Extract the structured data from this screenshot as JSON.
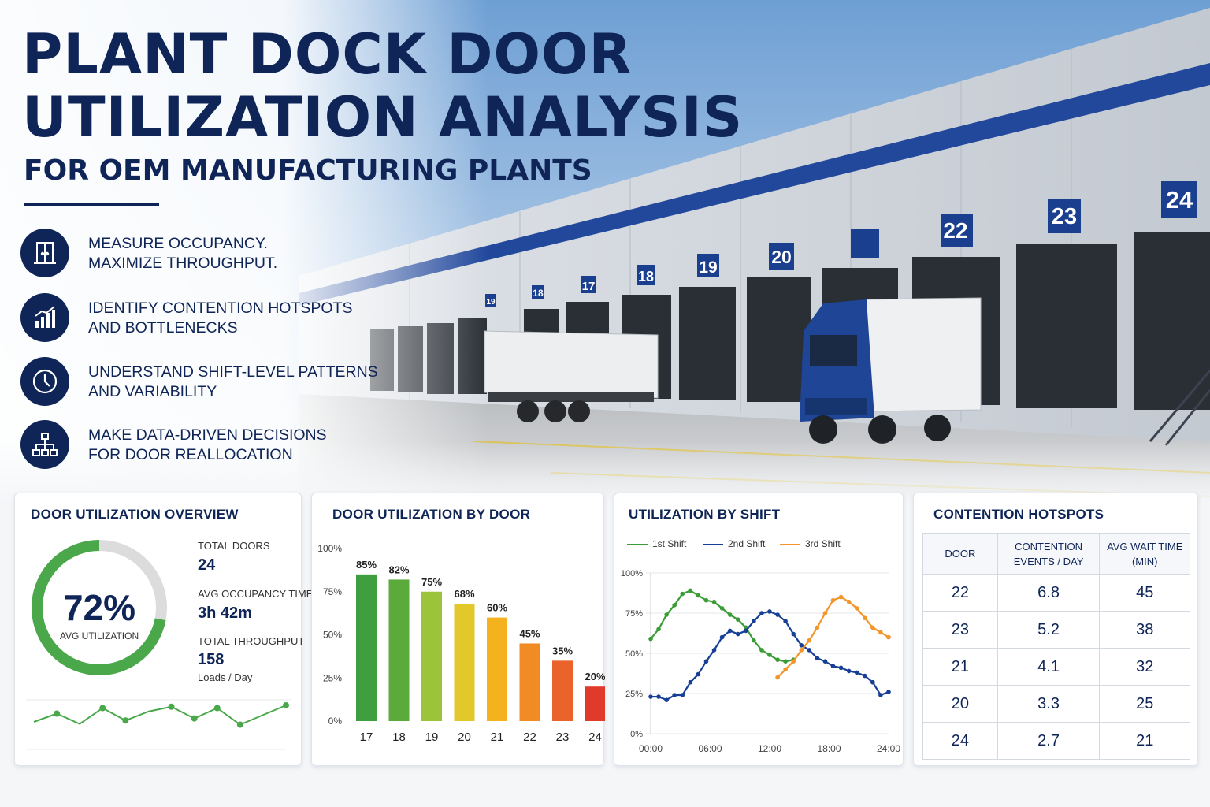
{
  "title": {
    "line1": "PLANT DOCK DOOR",
    "line2": "UTILIZATION ANALYSIS",
    "subtitle": "FOR OEM MANUFACTURING PLANTS"
  },
  "features": [
    {
      "icon": "door-icon",
      "line1": "MEASURE OCCUPANCY.",
      "line2": "MAXIMIZE THROUGHPUT."
    },
    {
      "icon": "bar-trend-icon",
      "line1": "IDENTIFY CONTENTION HOTSPOTS",
      "line2": "AND BOTTLENECKS"
    },
    {
      "icon": "clock-icon",
      "line1": "UNDERSTAND SHIFT-LEVEL PATTERNS",
      "line2": "AND VARIABILITY"
    },
    {
      "icon": "hierarchy-icon",
      "line1": "MAKE DATA-DRIVEN DECISIONS",
      "line2": "FOR DOOR REALLOCATION"
    }
  ],
  "hero": {
    "door_numbers": [
      "17",
      "18",
      "19",
      "20",
      "22",
      "23",
      "24"
    ],
    "small_door_numbers": [
      "19",
      "18"
    ]
  },
  "overview": {
    "title": "DOOR UTILIZATION OVERVIEW",
    "avg_utilization": "72%",
    "avg_utilization_label": "AVG UTILIZATION",
    "total_doors_label": "TOTAL DOORS",
    "total_doors": "24",
    "avg_occupancy_label": "AVG OCCUPANCY TIME",
    "avg_occupancy": "3h 42m",
    "throughput_label": "TOTAL THROUGHPUT",
    "throughput": "158",
    "throughput_unit": "Loads / Day",
    "colors": {
      "accent": "#4aa84a",
      "track": "#dcdcdc"
    }
  },
  "chart_data": [
    {
      "type": "pie",
      "values": [
        72,
        28
      ],
      "center_label": "72%"
    },
    {
      "type": "line",
      "x": [
        0,
        1,
        2,
        3,
        4,
        5,
        6,
        7,
        8,
        9,
        10,
        11
      ],
      "values": [
        40,
        52,
        37,
        60,
        42,
        55,
        62,
        45,
        60,
        36,
        50,
        64
      ]
    },
    {
      "type": "bar",
      "title": "DOOR UTILIZATION BY DOOR",
      "categories": [
        "17",
        "18",
        "19",
        "20",
        "21",
        "22",
        "23",
        "24"
      ],
      "values": [
        85,
        82,
        75,
        68,
        60,
        45,
        35,
        20
      ],
      "value_labels": [
        "85%",
        "82%",
        "75%",
        "68%",
        "60%",
        "45%",
        "35%",
        "20%"
      ],
      "colors": [
        "#3f9f3f",
        "#5aab3c",
        "#9cc43a",
        "#e2c82a",
        "#f3b21e",
        "#f18c24",
        "#e9632b",
        "#e03a2a"
      ],
      "yticks": [
        "0%",
        "25%",
        "50%",
        "75%",
        "100%"
      ],
      "ylim": [
        0,
        100
      ]
    },
    {
      "type": "line",
      "title": "UTILIZATION BY SHIFT",
      "xticks": [
        "00:00",
        "06:00",
        "12:00",
        "18:00",
        "24:00"
      ],
      "yticks": [
        "0%",
        "25%",
        "50%",
        "75%",
        "100%"
      ],
      "xlim": [
        0,
        24
      ],
      "ylim": [
        0,
        100
      ],
      "series": [
        {
          "name": "1st Shift",
          "color": "#3a9c35",
          "x": [
            0,
            0.8,
            1.6,
            2.4,
            3.2,
            4.0,
            4.8,
            5.6,
            6.4,
            7.2,
            8.0,
            8.8,
            9.6,
            10.4,
            11.2,
            12.0,
            12.8,
            13.6,
            14.4
          ],
          "y": [
            59,
            65,
            74,
            80,
            87,
            89,
            86,
            83,
            82,
            78,
            74,
            71,
            66,
            58,
            52,
            49,
            46,
            45,
            46
          ]
        },
        {
          "name": "2nd Shift",
          "color": "#173f96",
          "x": [
            0,
            0.8,
            1.6,
            2.4,
            3.2,
            4.0,
            4.8,
            5.6,
            6.4,
            7.2,
            8.0,
            8.8,
            9.6,
            10.4,
            11.2,
            12.0,
            12.8,
            13.6,
            14.4,
            15.2,
            16.0,
            16.8,
            17.6,
            18.4,
            19.2,
            20.0,
            20.8,
            21.6,
            22.4,
            23.2,
            24.0
          ],
          "y": [
            23,
            23,
            21,
            24,
            24,
            32,
            37,
            45,
            52,
            60,
            64,
            62,
            64,
            70,
            75,
            76,
            74,
            70,
            62,
            55,
            52,
            47,
            45,
            42,
            41,
            39,
            38,
            36,
            32,
            24,
            26
          ]
        },
        {
          "name": "3rd Shift",
          "color": "#f2952b",
          "x": [
            12.8,
            13.6,
            14.4,
            15.2,
            16.0,
            16.8,
            17.6,
            18.4,
            19.2,
            20.0,
            20.8,
            21.6,
            22.4,
            23.2,
            24.0
          ],
          "y": [
            35,
            40,
            45,
            52,
            58,
            66,
            75,
            83,
            85,
            82,
            78,
            72,
            66,
            63,
            60
          ]
        }
      ]
    }
  ],
  "hotspots": {
    "title": "CONTENTION HOTSPOTS",
    "headers": {
      "door": "DOOR",
      "events_line1": "CONTENTION",
      "events_line2": "EVENTS / DAY",
      "wait_line1": "AVG WAIT TIME",
      "wait_line2": "(MIN)"
    },
    "rows": [
      {
        "door": "22",
        "events": "6.8",
        "wait": "45"
      },
      {
        "door": "23",
        "events": "5.2",
        "wait": "38"
      },
      {
        "door": "21",
        "events": "4.1",
        "wait": "32"
      },
      {
        "door": "20",
        "events": "3.3",
        "wait": "25"
      },
      {
        "door": "24",
        "events": "2.7",
        "wait": "21"
      }
    ]
  }
}
